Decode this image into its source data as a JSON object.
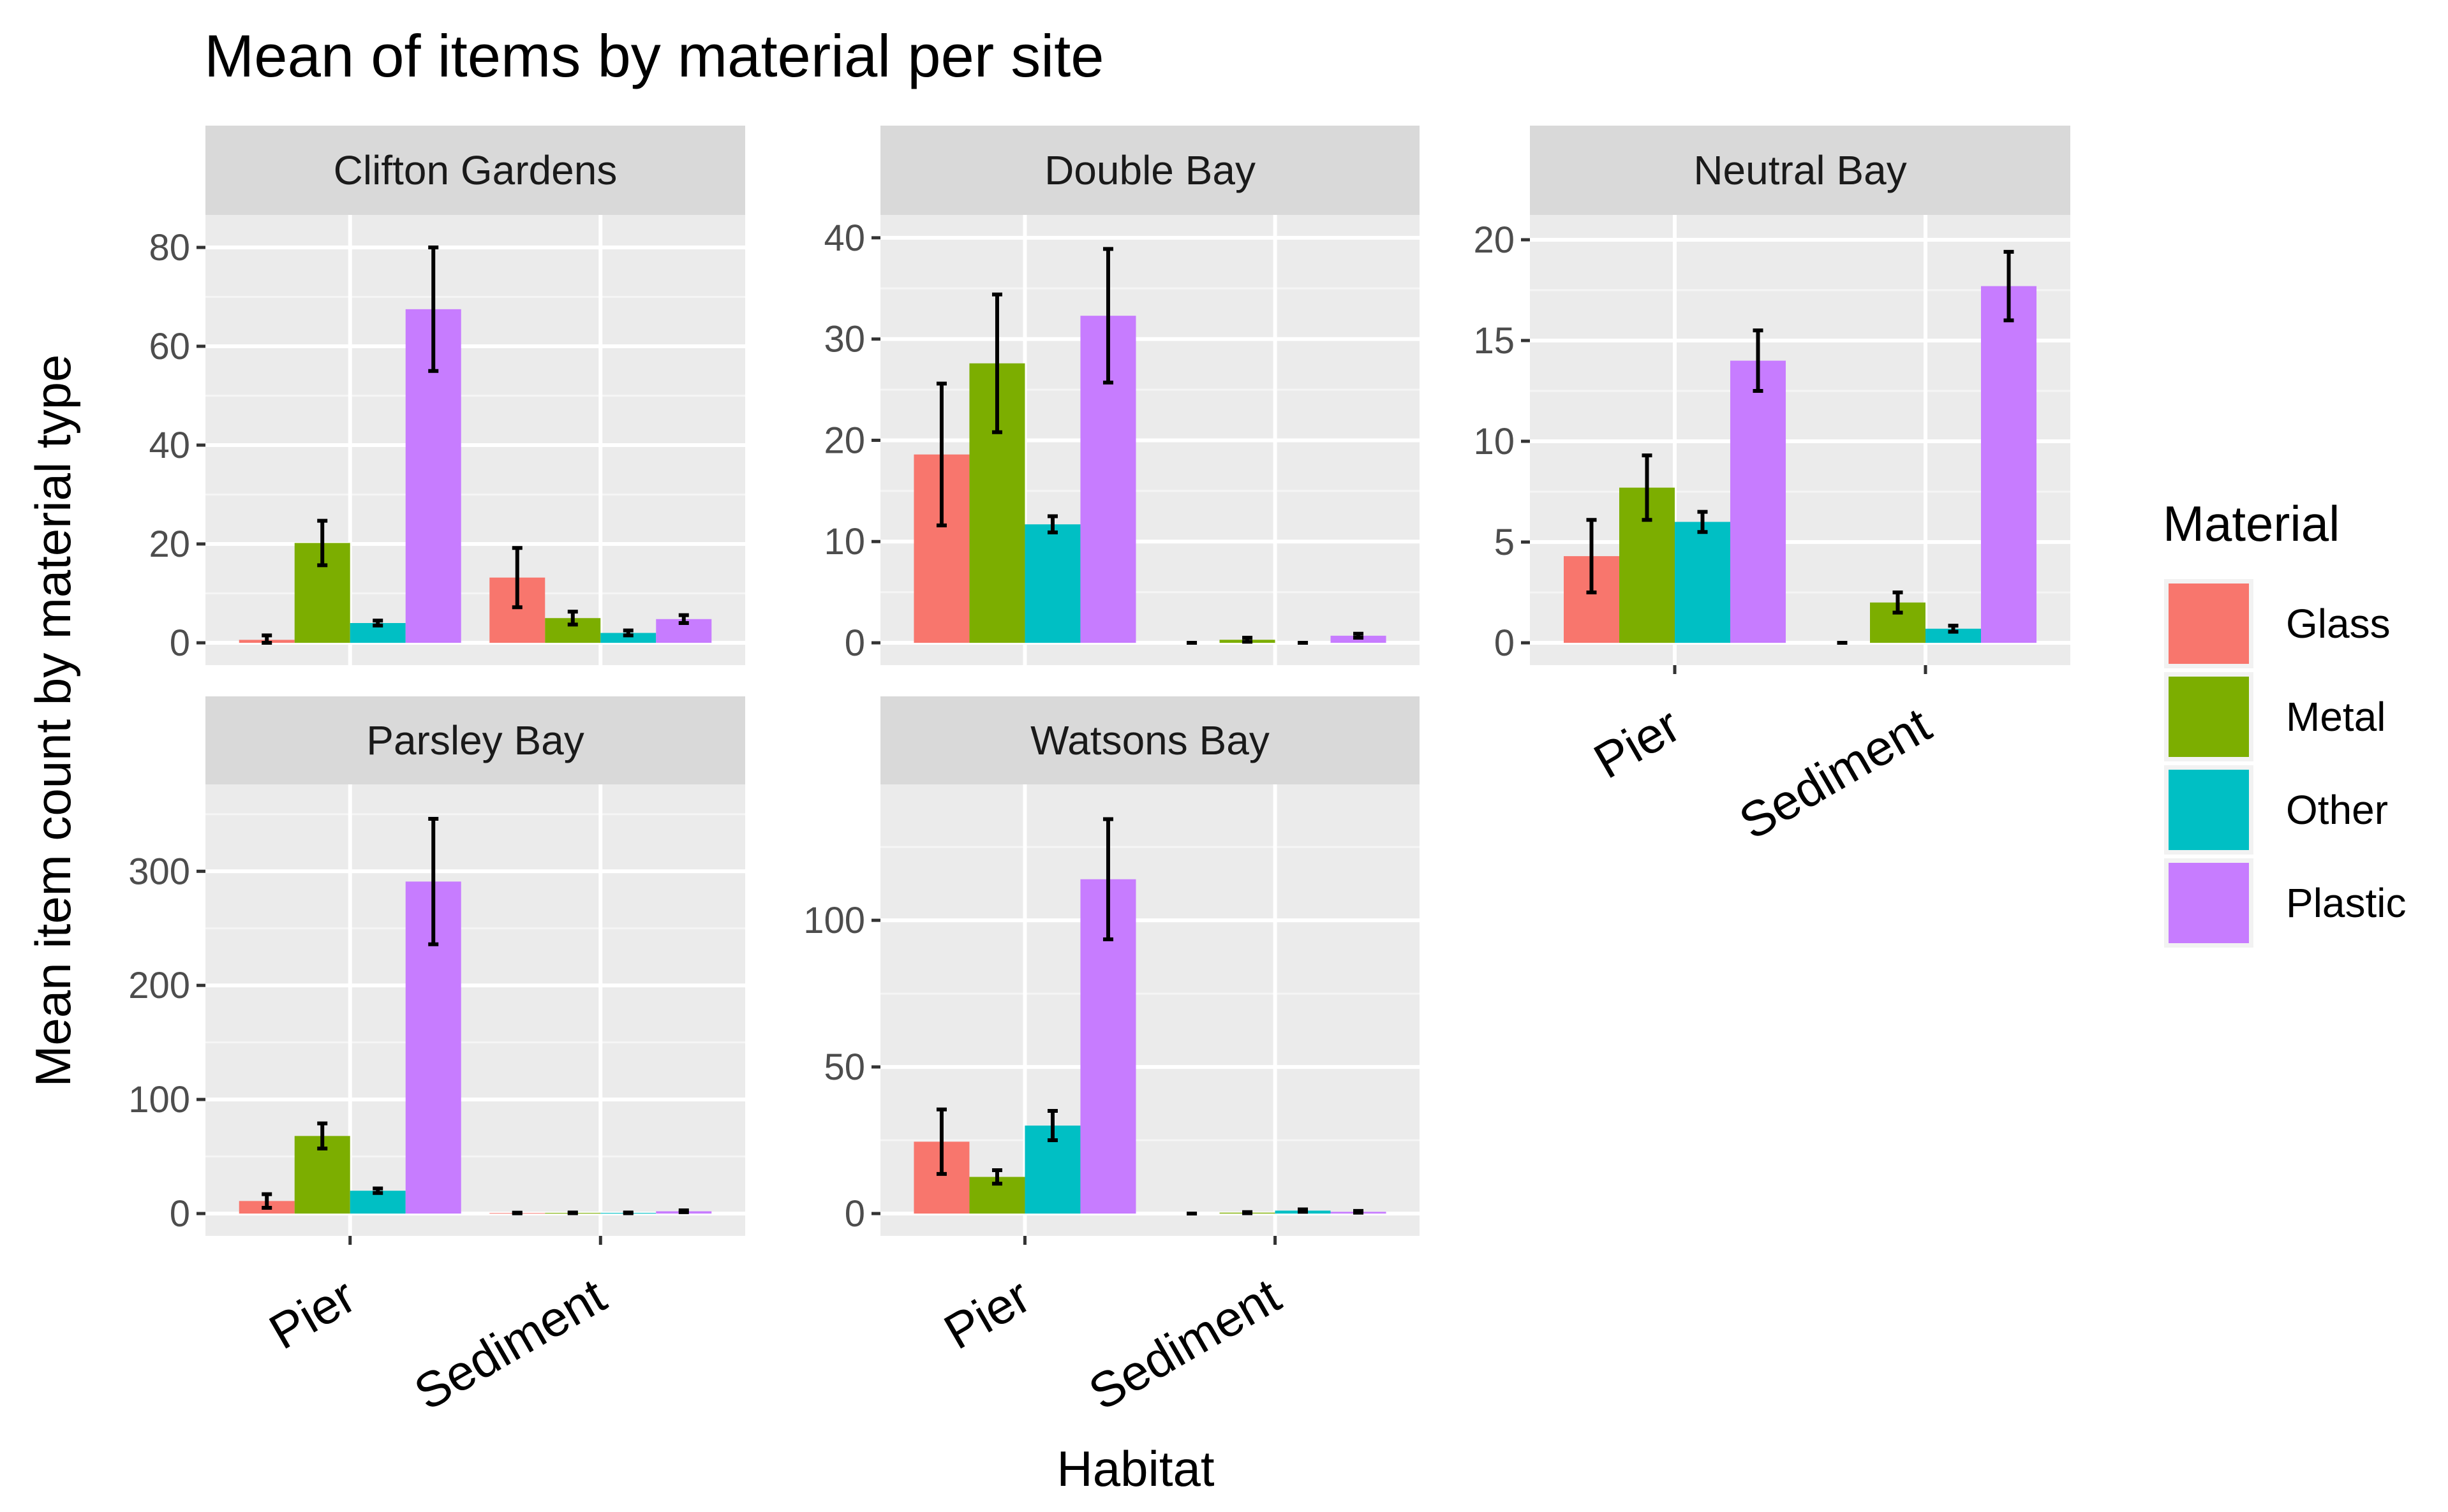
{
  "chart_data": {
    "type": "bar",
    "title": "Mean of items by material per site",
    "xlabel": "Habitat",
    "ylabel": "Mean item count by material type",
    "categories": [
      "Pier",
      "Sediment"
    ],
    "legend": {
      "title": "Material",
      "position": "right",
      "entries": [
        {
          "name": "Glass",
          "color": "#F8766D"
        },
        {
          "name": "Metal",
          "color": "#7CAE00"
        },
        {
          "name": "Other",
          "color": "#00BFC4"
        },
        {
          "name": "Plastic",
          "color": "#C77CFF"
        }
      ]
    },
    "grid": true,
    "error_bars": true,
    "facets": [
      {
        "name": "Clifton Gardens",
        "ylim": [
          0,
          84
        ],
        "yticks": [
          0,
          20,
          40,
          60,
          80
        ],
        "series": [
          {
            "name": "Glass",
            "values": [
              0.6,
              13.2
            ],
            "errors": [
              0.9,
              6.0
            ]
          },
          {
            "name": "Metal",
            "values": [
              20.2,
              5.0
            ],
            "errors": [
              4.5,
              1.3
            ]
          },
          {
            "name": "Other",
            "values": [
              4.0,
              2.0
            ],
            "errors": [
              0.5,
              0.5
            ]
          },
          {
            "name": "Plastic",
            "values": [
              67.5,
              4.8
            ],
            "errors": [
              12.5,
              0.8
            ]
          }
        ]
      },
      {
        "name": "Double Bay",
        "ylim": [
          0,
          41
        ],
        "yticks": [
          0,
          10,
          20,
          30,
          40
        ],
        "series": [
          {
            "name": "Glass",
            "values": [
              18.6,
              0.0
            ],
            "errors": [
              7.0,
              0.0
            ]
          },
          {
            "name": "Metal",
            "values": [
              27.6,
              0.3
            ],
            "errors": [
              6.8,
              0.2
            ]
          },
          {
            "name": "Other",
            "values": [
              11.7,
              0.0
            ],
            "errors": [
              0.8,
              0.0
            ]
          },
          {
            "name": "Plastic",
            "values": [
              32.3,
              0.7
            ],
            "errors": [
              6.6,
              0.2
            ]
          }
        ]
      },
      {
        "name": "Neutral Bay",
        "ylim": [
          0,
          20.6
        ],
        "yticks": [
          0,
          5,
          10,
          15,
          20
        ],
        "series": [
          {
            "name": "Glass",
            "values": [
              4.3,
              0.0
            ],
            "errors": [
              1.8,
              0.0
            ]
          },
          {
            "name": "Metal",
            "values": [
              7.7,
              2.0
            ],
            "errors": [
              1.6,
              0.5
            ]
          },
          {
            "name": "Other",
            "values": [
              6.0,
              0.7
            ],
            "errors": [
              0.5,
              0.15
            ]
          },
          {
            "name": "Plastic",
            "values": [
              14.0,
              17.7
            ],
            "errors": [
              1.5,
              1.7
            ]
          }
        ]
      },
      {
        "name": "Parsley Bay",
        "ylim": [
          0,
          365
        ],
        "yticks": [
          0,
          100,
          200,
          300
        ],
        "series": [
          {
            "name": "Glass",
            "values": [
              11.0,
              0.5
            ],
            "errors": [
              6.0,
              0.3
            ]
          },
          {
            "name": "Metal",
            "values": [
              68.0,
              0.6
            ],
            "errors": [
              11.0,
              0.3
            ]
          },
          {
            "name": "Other",
            "values": [
              20.0,
              0.6
            ],
            "errors": [
              2.0,
              0.3
            ]
          },
          {
            "name": "Plastic",
            "values": [
              291.0,
              2.0
            ],
            "errors": [
              55.0,
              0.8
            ]
          }
        ]
      },
      {
        "name": "Watsons Bay",
        "ylim": [
          0,
          142
        ],
        "yticks": [
          0,
          50,
          100
        ],
        "series": [
          {
            "name": "Glass",
            "values": [
              24.5,
              0.0
            ],
            "errors": [
              11.0,
              0.0
            ]
          },
          {
            "name": "Metal",
            "values": [
              12.5,
              0.3
            ],
            "errors": [
              2.3,
              0.2
            ]
          },
          {
            "name": "Other",
            "values": [
              30.0,
              1.0
            ],
            "errors": [
              5.0,
              0.4
            ]
          },
          {
            "name": "Plastic",
            "values": [
              114.0,
              0.6
            ],
            "errors": [
              20.5,
              0.3
            ]
          }
        ]
      }
    ]
  }
}
